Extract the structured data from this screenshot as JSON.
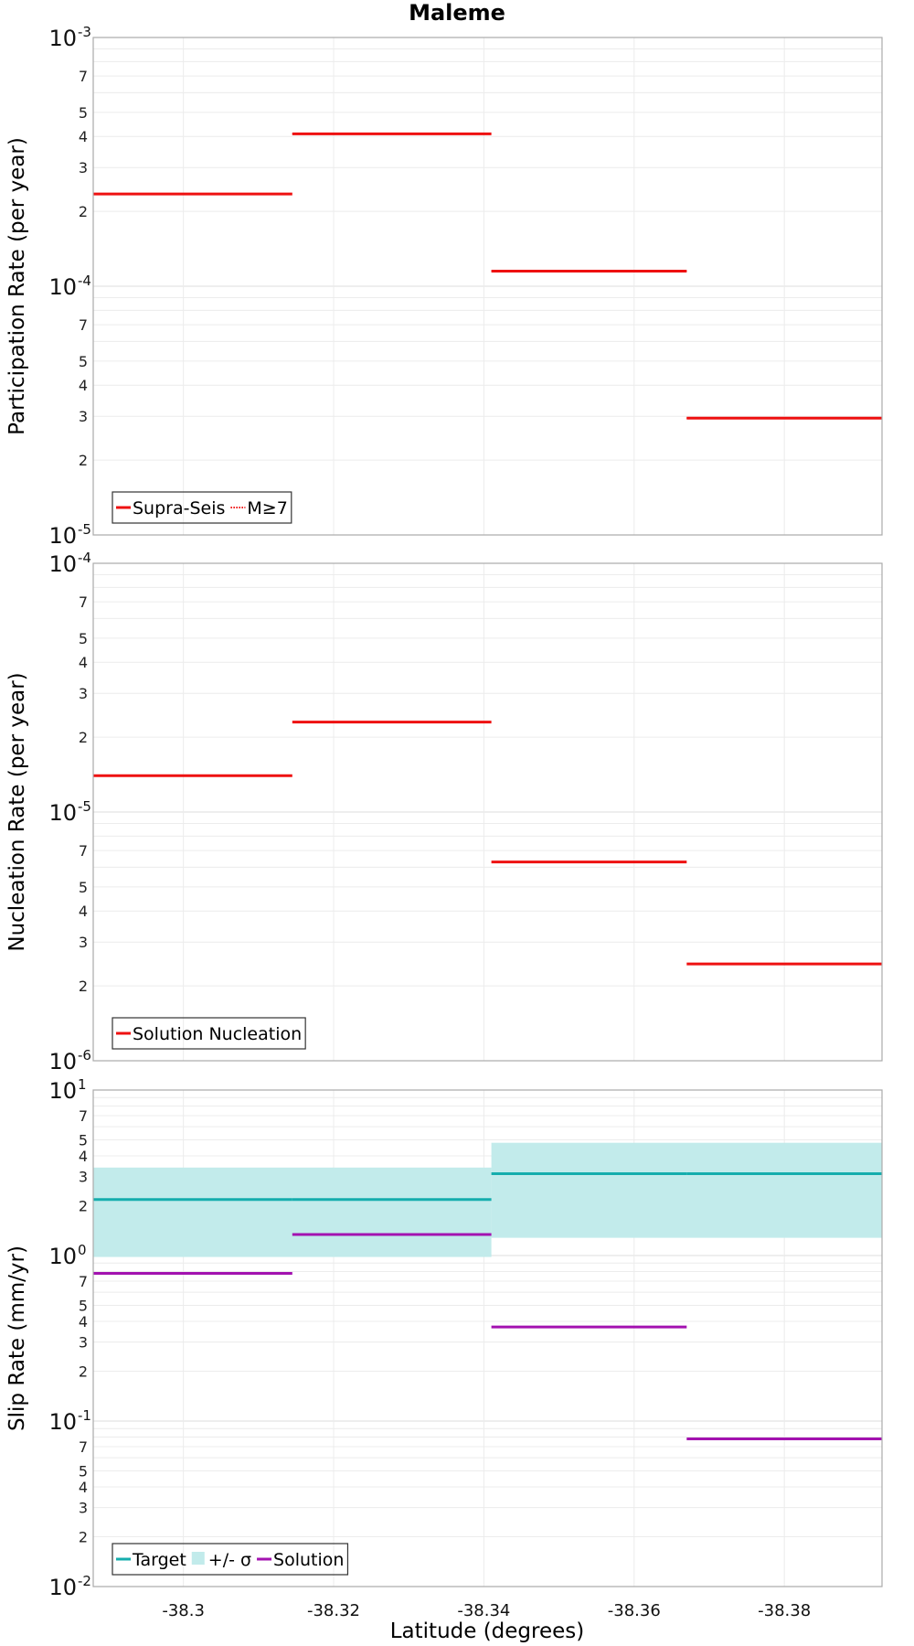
{
  "title": "Maleme",
  "xlabel": "Latitude (degrees)",
  "colors": {
    "red": "#ee1111",
    "teal": "#15adad",
    "band": "#c2ebeb",
    "purple": "#a312b0",
    "grid": "#ececec",
    "frame": "#aaaaaa"
  },
  "chart_data": [
    {
      "type": "line",
      "ylabel": "Participation Rate (per year)",
      "yscale": "log",
      "xlim": [
        -38.288,
        -38.393
      ],
      "ylim": [
        1e-05,
        0.001
      ],
      "x_ticks": [
        -38.3,
        -38.32,
        -38.34,
        -38.36,
        -38.38
      ],
      "x_tick_labels": [
        "-38.3",
        "-38.32",
        "-38.34",
        "-38.36",
        "-38.38"
      ],
      "y_decade_labels": [
        {
          "base": "10",
          "exp": "-5",
          "value": 1e-05
        },
        {
          "base": "10",
          "exp": "-4",
          "value": 0.0001
        },
        {
          "base": "10",
          "exp": "-3",
          "value": 0.001
        }
      ],
      "legend": {
        "position": "bottom-left",
        "entries": [
          {
            "label": "Supra-Seis",
            "color": "#ee1111",
            "style": "solid"
          },
          {
            "label": "M≥7",
            "color": "#ee1111",
            "style": "dotted"
          }
        ]
      },
      "series": [
        {
          "name": "Supra-Seis",
          "color": "#ee1111",
          "style": "solid",
          "segments": [
            {
              "x0": -38.288,
              "x1": -38.3145,
              "y": 0.000235
            },
            {
              "x0": -38.3145,
              "x1": -38.341,
              "y": 0.00041
            },
            {
              "x0": -38.341,
              "x1": -38.367,
              "y": 0.000115
            },
            {
              "x0": -38.367,
              "x1": -38.393,
              "y": 2.95e-05
            }
          ]
        },
        {
          "name": "M≥7",
          "color": "#ee1111",
          "style": "dotted",
          "segments": [
            {
              "x0": -38.288,
              "x1": -38.3145,
              "y": 0.000235
            },
            {
              "x0": -38.3145,
              "x1": -38.341,
              "y": 0.00041
            },
            {
              "x0": -38.341,
              "x1": -38.367,
              "y": 0.000115
            },
            {
              "x0": -38.367,
              "x1": -38.393,
              "y": 2.95e-05
            }
          ]
        }
      ]
    },
    {
      "type": "line",
      "ylabel": "Nucleation Rate (per year)",
      "yscale": "log",
      "xlim": [
        -38.288,
        -38.393
      ],
      "ylim": [
        1e-06,
        0.0001
      ],
      "x_ticks": [
        -38.3,
        -38.32,
        -38.34,
        -38.36,
        -38.38
      ],
      "x_tick_labels": [
        "-38.3",
        "-38.32",
        "-38.34",
        "-38.36",
        "-38.38"
      ],
      "y_decade_labels": [
        {
          "base": "10",
          "exp": "-6",
          "value": 1e-06
        },
        {
          "base": "10",
          "exp": "-5",
          "value": 1e-05
        },
        {
          "base": "10",
          "exp": "-4",
          "value": 0.0001
        }
      ],
      "legend": {
        "position": "bottom-left",
        "entries": [
          {
            "label": "Solution Nucleation",
            "color": "#ee1111",
            "style": "solid"
          }
        ]
      },
      "series": [
        {
          "name": "Solution Nucleation",
          "color": "#ee1111",
          "style": "solid",
          "segments": [
            {
              "x0": -38.288,
              "x1": -38.3145,
              "y": 1.4e-05
            },
            {
              "x0": -38.3145,
              "x1": -38.341,
              "y": 2.3e-05
            },
            {
              "x0": -38.341,
              "x1": -38.367,
              "y": 6.3e-06
            },
            {
              "x0": -38.367,
              "x1": -38.393,
              "y": 2.45e-06
            }
          ]
        }
      ]
    },
    {
      "type": "line",
      "ylabel": "Slip Rate (mm/yr)",
      "yscale": "log",
      "xlim": [
        -38.288,
        -38.393
      ],
      "ylim": [
        0.01,
        10
      ],
      "x_ticks": [
        -38.3,
        -38.32,
        -38.34,
        -38.36,
        -38.38
      ],
      "x_tick_labels": [
        "-38.3",
        "-38.32",
        "-38.34",
        "-38.36",
        "-38.38"
      ],
      "y_decade_labels": [
        {
          "base": "10",
          "exp": "-2",
          "value": 0.01
        },
        {
          "base": "10",
          "exp": "-1",
          "value": 0.1
        },
        {
          "base": "10",
          "exp": "0",
          "value": 1
        },
        {
          "base": "10",
          "exp": "1",
          "value": 10
        }
      ],
      "legend": {
        "position": "bottom-left",
        "entries": [
          {
            "label": "Target",
            "color": "#15adad",
            "style": "solid"
          },
          {
            "label": "+/- σ",
            "color": "#c2ebeb",
            "style": "band"
          },
          {
            "label": "Solution",
            "color": "#a312b0",
            "style": "solid"
          }
        ]
      },
      "bands": [
        {
          "name": "+/- σ",
          "color": "#c2ebeb",
          "segments": [
            {
              "x0": -38.288,
              "x1": -38.341,
              "low": 0.98,
              "high": 3.4
            },
            {
              "x0": -38.341,
              "x1": -38.393,
              "low": 1.28,
              "high": 4.8
            }
          ]
        }
      ],
      "series": [
        {
          "name": "Target",
          "color": "#15adad",
          "style": "solid",
          "segments": [
            {
              "x0": -38.288,
              "x1": -38.3145,
              "y": 2.18
            },
            {
              "x0": -38.3145,
              "x1": -38.341,
              "y": 2.18
            },
            {
              "x0": -38.341,
              "x1": -38.367,
              "y": 3.12
            },
            {
              "x0": -38.367,
              "x1": -38.393,
              "y": 3.12
            }
          ]
        },
        {
          "name": "Solution",
          "color": "#a312b0",
          "style": "solid",
          "segments": [
            {
              "x0": -38.288,
              "x1": -38.3145,
              "y": 0.78
            },
            {
              "x0": -38.3145,
              "x1": -38.341,
              "y": 1.34
            },
            {
              "x0": -38.341,
              "x1": -38.367,
              "y": 0.37
            },
            {
              "x0": -38.367,
              "x1": -38.393,
              "y": 0.078
            }
          ]
        }
      ]
    }
  ]
}
